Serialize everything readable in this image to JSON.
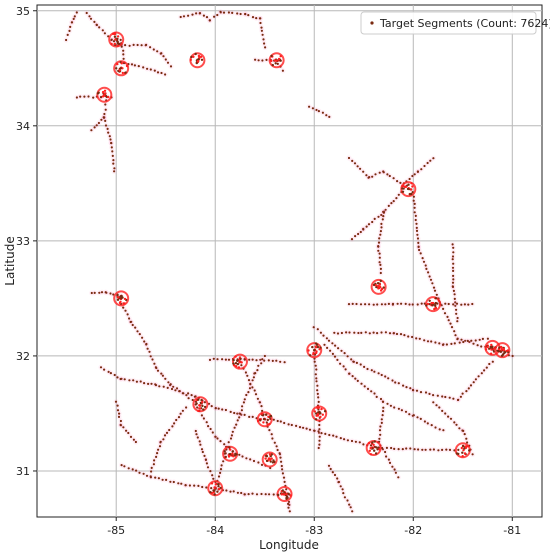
{
  "chart_data": {
    "type": "scatter",
    "title": "",
    "xlabel": "Longitude",
    "ylabel": "Latitude",
    "xlim": [
      -85.8,
      -80.7
    ],
    "ylim": [
      30.6,
      35.05
    ],
    "xticks": [
      -85,
      -84,
      -83,
      -82,
      -81
    ],
    "yticks": [
      31,
      32,
      33,
      34,
      35
    ],
    "xtick_labels": [
      "-85",
      "-84",
      "-83",
      "-82",
      "-81"
    ],
    "ytick_labels": [
      "31",
      "32",
      "33",
      "34",
      "35"
    ],
    "grid": true,
    "legend_position": "top-right",
    "point_color": "#7a2a10",
    "halo_color": "#ff2020",
    "series": [
      {
        "name": "Target Segments (Count: 7624)",
        "paths": [
          [
            [
              -85.5,
              34.75
            ],
            [
              -85.45,
              34.9
            ],
            [
              -85.4,
              34.98
            ]
          ],
          [
            [
              -85.3,
              34.98
            ],
            [
              -85.2,
              34.88
            ],
            [
              -85.05,
              34.75
            ],
            [
              -84.95,
              34.7
            ],
            [
              -84.7,
              34.7
            ],
            [
              -84.55,
              34.63
            ],
            [
              -84.45,
              34.52
            ]
          ],
          [
            [
              -84.95,
              34.75
            ],
            [
              -84.92,
              34.55
            ],
            [
              -84.5,
              34.45
            ]
          ],
          [
            [
              -84.35,
              34.95
            ],
            [
              -84.15,
              34.98
            ],
            [
              -84.05,
              34.92
            ],
            [
              -83.95,
              34.99
            ],
            [
              -83.7,
              34.97
            ],
            [
              -83.55,
              34.93
            ],
            [
              -83.5,
              34.68
            ]
          ],
          [
            [
              -83.6,
              34.57
            ],
            [
              -83.4,
              34.57
            ],
            [
              -83.32,
              34.48
            ]
          ],
          [
            [
              -85.4,
              34.25
            ],
            [
              -85.15,
              34.25
            ],
            [
              -85.05,
              34.25
            ]
          ],
          [
            [
              -85.1,
              34.22
            ],
            [
              -85.12,
              34.07
            ],
            [
              -85.25,
              33.96
            ]
          ],
          [
            [
              -85.12,
              34.07
            ],
            [
              -85.05,
              33.85
            ],
            [
              -85.02,
              33.6
            ]
          ],
          [
            [
              -83.05,
              34.17
            ],
            [
              -82.85,
              34.08
            ]
          ],
          [
            [
              -82.65,
              33.72
            ],
            [
              -82.45,
              33.55
            ],
            [
              -82.3,
              33.6
            ],
            [
              -82.1,
              33.48
            ]
          ],
          [
            [
              -82.1,
              33.5
            ],
            [
              -81.95,
              33.6
            ],
            [
              -81.8,
              33.72
            ]
          ],
          [
            [
              -82.1,
              33.45
            ],
            [
              -82.3,
              33.25
            ],
            [
              -82.5,
              33.1
            ],
            [
              -82.62,
              33.02
            ]
          ],
          [
            [
              -82.3,
              33.25
            ],
            [
              -82.35,
              32.95
            ],
            [
              -82.33,
              32.72
            ]
          ],
          [
            [
              -82.0,
              33.42
            ],
            [
              -81.95,
              32.95
            ],
            [
              -81.75,
              32.5
            ],
            [
              -81.55,
              32.15
            ],
            [
              -81.0,
              32.0
            ]
          ],
          [
            [
              -81.6,
              32.97
            ],
            [
              -81.6,
              32.6
            ],
            [
              -81.55,
              32.3
            ]
          ],
          [
            [
              -82.65,
              32.45
            ],
            [
              -82.2,
              32.45
            ],
            [
              -81.8,
              32.45
            ],
            [
              -81.4,
              32.45
            ]
          ],
          [
            [
              -82.8,
              32.2
            ],
            [
              -82.2,
              32.2
            ],
            [
              -81.7,
              32.1
            ],
            [
              -81.25,
              32.15
            ]
          ],
          [
            [
              -83.0,
              32.25
            ],
            [
              -82.6,
              31.95
            ],
            [
              -82.0,
              31.7
            ],
            [
              -81.55,
              31.62
            ],
            [
              -81.2,
              31.95
            ]
          ],
          [
            [
              -82.9,
              32.1
            ],
            [
              -82.65,
              31.85
            ],
            [
              -82.3,
              31.6
            ],
            [
              -82.0,
              31.48
            ],
            [
              -81.7,
              31.35
            ]
          ],
          [
            [
              -82.3,
              31.55
            ],
            [
              -82.35,
              31.25
            ],
            [
              -82.15,
              30.95
            ]
          ],
          [
            [
              -81.8,
              31.6
            ],
            [
              -81.5,
              31.35
            ],
            [
              -81.4,
              31.15
            ]
          ],
          [
            [
              -83.0,
              32.05
            ],
            [
              -82.95,
              31.5
            ],
            [
              -82.95,
              31.2
            ]
          ],
          [
            [
              -82.85,
              31.05
            ],
            [
              -82.75,
              30.9
            ],
            [
              -82.62,
              30.65
            ]
          ],
          [
            [
              -83.45,
              31.45
            ],
            [
              -83.0,
              31.35
            ],
            [
              -82.35,
              31.2
            ],
            [
              -81.55,
              31.18
            ]
          ],
          [
            [
              -85.25,
              32.55
            ],
            [
              -85.1,
              32.55
            ],
            [
              -84.95,
              32.52
            ]
          ],
          [
            [
              -84.95,
              32.45
            ],
            [
              -84.85,
              32.3
            ],
            [
              -84.7,
              32.1
            ],
            [
              -84.6,
              31.9
            ],
            [
              -84.45,
              31.75
            ],
            [
              -84.2,
              31.6
            ]
          ],
          [
            [
              -85.15,
              31.9
            ],
            [
              -84.95,
              31.8
            ],
            [
              -84.6,
              31.75
            ],
            [
              -84.2,
              31.65
            ],
            [
              -84.0,
              31.55
            ],
            [
              -83.55,
              31.45
            ]
          ],
          [
            [
              -84.05,
              31.97
            ],
            [
              -83.7,
              31.97
            ],
            [
              -83.3,
              31.95
            ]
          ],
          [
            [
              -84.2,
              31.58
            ],
            [
              -84.0,
              31.3
            ],
            [
              -83.8,
              31.15
            ],
            [
              -83.45,
              31.03
            ]
          ],
          [
            [
              -84.3,
              31.55
            ],
            [
              -84.55,
              31.25
            ],
            [
              -84.65,
              31.0
            ]
          ],
          [
            [
              -85.0,
              31.6
            ],
            [
              -84.95,
              31.4
            ],
            [
              -84.8,
              31.25
            ]
          ],
          [
            [
              -84.95,
              31.05
            ],
            [
              -84.65,
              30.95
            ],
            [
              -84.3,
              30.88
            ],
            [
              -84.0,
              30.85
            ],
            [
              -83.7,
              30.8
            ],
            [
              -83.25,
              30.8
            ]
          ],
          [
            [
              -84.0,
              30.85
            ],
            [
              -83.9,
              31.15
            ],
            [
              -83.75,
              31.5
            ],
            [
              -83.6,
              31.85
            ],
            [
              -83.5,
              32.0
            ]
          ],
          [
            [
              -83.75,
              31.95
            ],
            [
              -83.55,
              31.6
            ],
            [
              -83.5,
              31.45
            ],
            [
              -83.35,
              31.15
            ],
            [
              -83.25,
              30.7
            ]
          ],
          [
            [
              -84.2,
              31.35
            ],
            [
              -84.1,
              31.1
            ],
            [
              -84.0,
              30.9
            ]
          ],
          [
            [
              -83.3,
              30.82
            ],
            [
              -83.25,
              30.65
            ]
          ]
        ],
        "hubs": [
          [
            -85.0,
            34.75
          ],
          [
            -84.95,
            34.5
          ],
          [
            -84.18,
            34.57
          ],
          [
            -83.38,
            34.57
          ],
          [
            -85.12,
            34.27
          ],
          [
            -82.05,
            33.45
          ],
          [
            -81.8,
            32.45
          ],
          [
            -82.35,
            32.6
          ],
          [
            -84.95,
            32.5
          ],
          [
            -81.2,
            32.07
          ],
          [
            -81.1,
            32.05
          ],
          [
            -84.15,
            31.58
          ],
          [
            -83.5,
            31.45
          ],
          [
            -82.4,
            31.2
          ],
          [
            -81.5,
            31.18
          ],
          [
            -84.0,
            30.85
          ],
          [
            -83.3,
            30.8
          ],
          [
            -83.75,
            31.95
          ],
          [
            -83.85,
            31.15
          ],
          [
            -83.45,
            31.1
          ],
          [
            -82.95,
            31.5
          ],
          [
            -83.0,
            32.05
          ]
        ]
      }
    ]
  }
}
